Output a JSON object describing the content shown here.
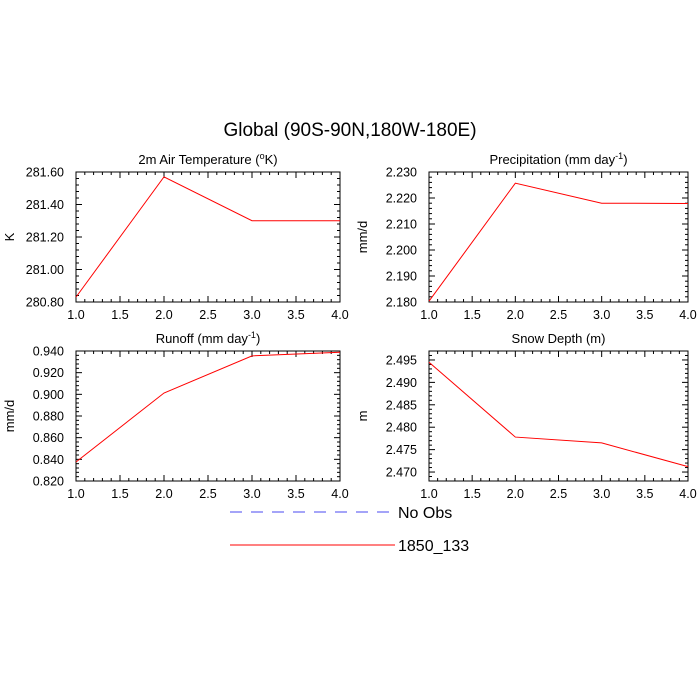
{
  "figure": {
    "title": "Global (90S-90N,180W-180E)"
  },
  "legend": {
    "entries": [
      {
        "label": "No Obs",
        "color": "#4a4af0",
        "style": "dashed"
      },
      {
        "label": "1850_133",
        "color": "#ff0000",
        "style": "solid"
      }
    ]
  },
  "chart_data": [
    {
      "type": "line",
      "title": "2m Air Temperature (°K)",
      "title_main": "2m Air Temperature (",
      "title_sup": "o",
      "title_end": "K)",
      "ylabel": "K",
      "xlim": [
        1.0,
        4.0
      ],
      "ylim": [
        280.8,
        281.6
      ],
      "xticks": [
        "1.0",
        "1.5",
        "2.0",
        "2.5",
        "3.0",
        "3.5",
        "4.0"
      ],
      "yticks": [
        "280.80",
        "281.00",
        "281.20",
        "281.40",
        "281.60"
      ],
      "series": [
        {
          "name": "1850_133",
          "color": "#ff0000",
          "x": [
            1,
            2,
            3,
            4
          ],
          "y": [
            280.83,
            281.57,
            281.3,
            281.3
          ]
        }
      ]
    },
    {
      "type": "line",
      "title": "Precipitation (mm day-1)",
      "title_main": "Precipitation (mm day",
      "title_sup": "-1",
      "title_end": ")",
      "ylabel": "mm/d",
      "xlim": [
        1.0,
        4.0
      ],
      "ylim": [
        2.18,
        2.23
      ],
      "xticks": [
        "1.0",
        "1.5",
        "2.0",
        "2.5",
        "3.0",
        "3.5",
        "4.0"
      ],
      "yticks": [
        "2.180",
        "2.190",
        "2.200",
        "2.210",
        "2.220",
        "2.230"
      ],
      "series": [
        {
          "name": "1850_133",
          "color": "#ff0000",
          "x": [
            1,
            2,
            3,
            4
          ],
          "y": [
            2.1803,
            2.2257,
            2.218,
            2.2179
          ]
        }
      ]
    },
    {
      "type": "line",
      "title": "Runoff (mm day-1)",
      "title_main": "Runoff (mm day",
      "title_sup": "-1",
      "title_end": ")",
      "ylabel": "mm/d",
      "xlim": [
        1.0,
        4.0
      ],
      "ylim": [
        0.82,
        0.94
      ],
      "xticks": [
        "1.0",
        "1.5",
        "2.0",
        "2.5",
        "3.0",
        "3.5",
        "4.0"
      ],
      "yticks": [
        "0.820",
        "0.840",
        "0.860",
        "0.880",
        "0.900",
        "0.920",
        "0.940"
      ],
      "series": [
        {
          "name": "1850_133",
          "color": "#ff0000",
          "x": [
            1,
            2,
            3,
            4
          ],
          "y": [
            0.8375,
            0.9012,
            0.9355,
            0.9388
          ]
        }
      ]
    },
    {
      "type": "line",
      "title": "Snow Depth (m)",
      "title_main": "Snow Depth (m)",
      "title_sup": "",
      "title_end": "",
      "ylabel": "m",
      "xlim": [
        1.0,
        4.0
      ],
      "ylim": [
        2.468,
        2.497
      ],
      "xticks": [
        "1.0",
        "1.5",
        "2.0",
        "2.5",
        "3.0",
        "3.5",
        "4.0"
      ],
      "yticks": [
        "2.470",
        "2.475",
        "2.480",
        "2.485",
        "2.490",
        "2.495"
      ],
      "series": [
        {
          "name": "1850_133",
          "color": "#ff0000",
          "x": [
            1,
            2,
            3,
            4
          ],
          "y": [
            2.4945,
            2.4778,
            2.4765,
            2.4712
          ]
        }
      ]
    }
  ]
}
